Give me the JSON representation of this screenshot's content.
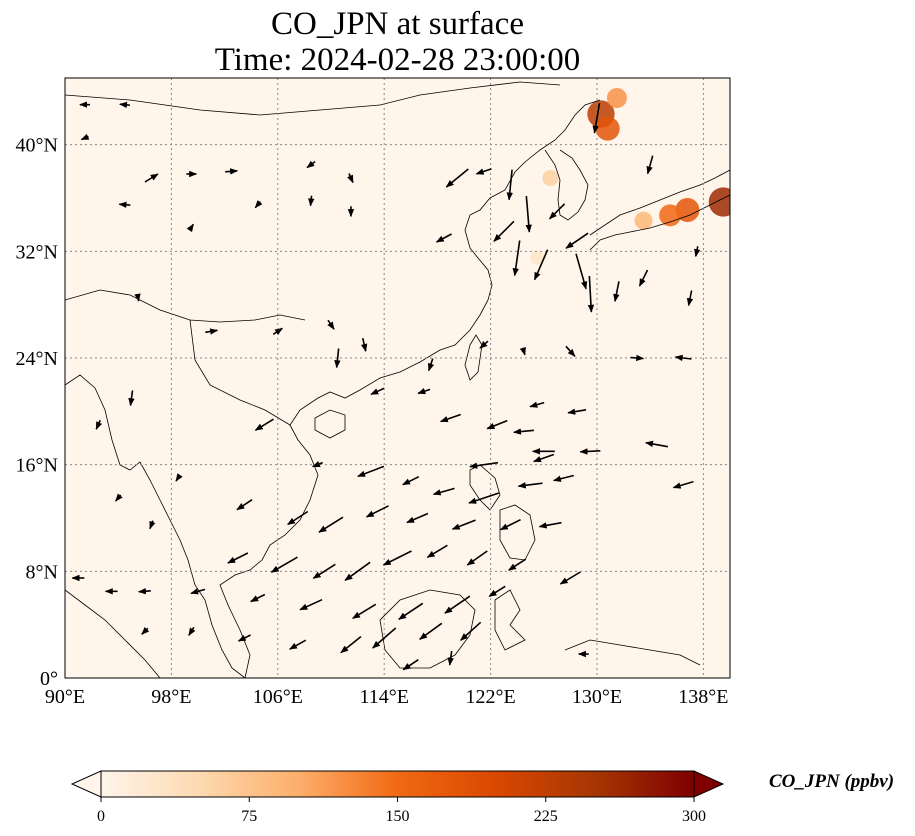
{
  "title": {
    "line1": "CO_JPN at surface",
    "line2": "Time: 2024-02-28 23:00:00"
  },
  "map": {
    "lon_range": [
      90,
      140
    ],
    "lat_range": [
      0,
      45
    ],
    "lon_ticks": [
      "90°E",
      "98°E",
      "106°E",
      "114°E",
      "122°E",
      "130°E",
      "138°E"
    ],
    "lat_ticks": [
      "0°",
      "8°N",
      "16°N",
      "24°N",
      "32°N",
      "40°N"
    ],
    "gridlines": "dotted",
    "background_color": "#fff5eb",
    "hotspot_color": "#c7300c"
  },
  "colorbar": {
    "label": "CO_JPN (ppbv)",
    "ticks": [
      "0",
      "75",
      "150",
      "225",
      "300"
    ],
    "range": [
      0,
      300
    ],
    "colormap": [
      "#fff5eb",
      "#fdd9b0",
      "#fdae6b",
      "#f16913",
      "#d94801",
      "#a63603",
      "#7f0000"
    ],
    "extend": "both"
  },
  "chart_data": {
    "type": "heatmap",
    "field": "CO_JPN",
    "units": "ppbv",
    "level": "surface",
    "time": "2024-02-28 23:00:00",
    "vmin": 0,
    "vmax": 300,
    "hotspots": [
      {
        "lon": 130.3,
        "lat": 42.3,
        "value": 230
      },
      {
        "lon": 130.8,
        "lat": 41.2,
        "value": 180
      },
      {
        "lon": 131.5,
        "lat": 43.5,
        "value": 120
      },
      {
        "lon": 139.5,
        "lat": 35.7,
        "value": 260
      },
      {
        "lon": 136.8,
        "lat": 35.1,
        "value": 180
      },
      {
        "lon": 135.5,
        "lat": 34.7,
        "value": 150
      },
      {
        "lon": 133.5,
        "lat": 34.3,
        "value": 90
      },
      {
        "lon": 126.5,
        "lat": 37.5,
        "value": 60
      },
      {
        "lon": 125.5,
        "lat": 31.5,
        "value": 30
      }
    ],
    "wind_vectors": [
      {
        "lon": 91.5,
        "lat": 43.0,
        "u": -1.0,
        "v": 0.0
      },
      {
        "lon": 94.5,
        "lat": 43.0,
        "u": -1.0,
        "v": 0.1
      },
      {
        "lon": 91.5,
        "lat": 40.5,
        "u": -0.7,
        "v": -0.3
      },
      {
        "lon": 96.5,
        "lat": 37.5,
        "u": 1.3,
        "v": 0.8
      },
      {
        "lon": 99.5,
        "lat": 37.8,
        "u": 1.0,
        "v": 0.0
      },
      {
        "lon": 102.5,
        "lat": 38.0,
        "u": 1.2,
        "v": 0.1
      },
      {
        "lon": 108.5,
        "lat": 38.5,
        "u": -0.8,
        "v": -0.6
      },
      {
        "lon": 111.5,
        "lat": 37.5,
        "u": 0.4,
        "v": -0.9
      },
      {
        "lon": 94.5,
        "lat": 35.5,
        "u": -1.1,
        "v": 0.1
      },
      {
        "lon": 99.5,
        "lat": 33.8,
        "u": 0.4,
        "v": 0.6
      },
      {
        "lon": 104.5,
        "lat": 35.5,
        "u": -0.5,
        "v": -0.6
      },
      {
        "lon": 108.5,
        "lat": 35.8,
        "u": -0.1,
        "v": -1.0
      },
      {
        "lon": 111.5,
        "lat": 35.0,
        "u": 0.0,
        "v": -1.0
      },
      {
        "lon": 119.5,
        "lat": 37.5,
        "u": -2.2,
        "v": -1.8
      },
      {
        "lon": 121.5,
        "lat": 38.0,
        "u": -1.5,
        "v": -0.5
      },
      {
        "lon": 123.5,
        "lat": 37.0,
        "u": -0.3,
        "v": -3.0
      },
      {
        "lon": 124.8,
        "lat": 34.8,
        "u": 0.3,
        "v": -3.6
      },
      {
        "lon": 123.0,
        "lat": 33.5,
        "u": -2.0,
        "v": -2.0
      },
      {
        "lon": 127.0,
        "lat": 35.0,
        "u": -1.5,
        "v": -1.5
      },
      {
        "lon": 118.5,
        "lat": 33.0,
        "u": -1.5,
        "v": -0.8
      },
      {
        "lon": 124.0,
        "lat": 31.5,
        "u": -0.5,
        "v": -3.5
      },
      {
        "lon": 125.8,
        "lat": 31.0,
        "u": -1.3,
        "v": -3.0
      },
      {
        "lon": 128.5,
        "lat": 32.8,
        "u": -2.2,
        "v": -1.5
      },
      {
        "lon": 128.8,
        "lat": 30.5,
        "u": 1.0,
        "v": -3.5
      },
      {
        "lon": 129.5,
        "lat": 28.8,
        "u": 0.2,
        "v": -3.6
      },
      {
        "lon": 131.5,
        "lat": 29.0,
        "u": -0.4,
        "v": -2.0
      },
      {
        "lon": 133.5,
        "lat": 30.0,
        "u": -0.8,
        "v": -1.6
      },
      {
        "lon": 137.0,
        "lat": 28.5,
        "u": -0.3,
        "v": -1.5
      },
      {
        "lon": 130.0,
        "lat": 42.0,
        "u": -0.5,
        "v": -3.0
      },
      {
        "lon": 134.0,
        "lat": 38.5,
        "u": -0.5,
        "v": -1.8
      },
      {
        "lon": 137.5,
        "lat": 32.0,
        "u": -0.2,
        "v": -1.0
      },
      {
        "lon": 95.5,
        "lat": 28.5,
        "u": 0.1,
        "v": -0.6
      },
      {
        "lon": 101.0,
        "lat": 26.0,
        "u": 1.2,
        "v": 0.2
      },
      {
        "lon": 106.0,
        "lat": 26.0,
        "u": 0.9,
        "v": 0.6
      },
      {
        "lon": 110.0,
        "lat": 26.5,
        "u": 0.6,
        "v": -0.9
      },
      {
        "lon": 112.5,
        "lat": 25.0,
        "u": 0.3,
        "v": -1.3
      },
      {
        "lon": 110.5,
        "lat": 24.0,
        "u": -0.2,
        "v": -1.9
      },
      {
        "lon": 117.5,
        "lat": 23.5,
        "u": -0.4,
        "v": -1.2
      },
      {
        "lon": 121.5,
        "lat": 25.0,
        "u": -0.8,
        "v": -0.7
      },
      {
        "lon": 124.5,
        "lat": 24.5,
        "u": 0.2,
        "v": -0.7
      },
      {
        "lon": 128.0,
        "lat": 24.5,
        "u": 0.9,
        "v": -1.0
      },
      {
        "lon": 133.0,
        "lat": 24.0,
        "u": 1.3,
        "v": -0.1
      },
      {
        "lon": 136.5,
        "lat": 24.0,
        "u": -1.6,
        "v": 0.2
      },
      {
        "lon": 105.0,
        "lat": 19.0,
        "u": -1.8,
        "v": -1.1
      },
      {
        "lon": 113.5,
        "lat": 21.5,
        "u": -1.3,
        "v": -0.6
      },
      {
        "lon": 117.0,
        "lat": 21.5,
        "u": -1.2,
        "v": -0.4
      },
      {
        "lon": 119.0,
        "lat": 19.5,
        "u": -2.0,
        "v": -0.7
      },
      {
        "lon": 122.5,
        "lat": 19.0,
        "u": -2.0,
        "v": -0.8
      },
      {
        "lon": 125.5,
        "lat": 20.5,
        "u": -1.4,
        "v": -0.4
      },
      {
        "lon": 128.5,
        "lat": 20.0,
        "u": -1.8,
        "v": -0.3
      },
      {
        "lon": 124.5,
        "lat": 18.5,
        "u": -2.0,
        "v": -0.2
      },
      {
        "lon": 126.0,
        "lat": 17.0,
        "u": -2.2,
        "v": 0.0
      },
      {
        "lon": 129.5,
        "lat": 17.0,
        "u": -2.0,
        "v": -0.1
      },
      {
        "lon": 134.5,
        "lat": 17.5,
        "u": -2.2,
        "v": 0.4
      },
      {
        "lon": 121.5,
        "lat": 16.0,
        "u": -2.8,
        "v": -0.4
      },
      {
        "lon": 126.0,
        "lat": 16.5,
        "u": -2.0,
        "v": -0.7
      },
      {
        "lon": 109.0,
        "lat": 16.0,
        "u": -1.0,
        "v": -0.4
      },
      {
        "lon": 113.0,
        "lat": 15.5,
        "u": -2.6,
        "v": -1.0
      },
      {
        "lon": 116.0,
        "lat": 14.8,
        "u": -1.6,
        "v": -0.8
      },
      {
        "lon": 118.5,
        "lat": 14.0,
        "u": -2.1,
        "v": -0.6
      },
      {
        "lon": 121.5,
        "lat": 13.5,
        "u": -3.0,
        "v": -1.0
      },
      {
        "lon": 125.0,
        "lat": 14.5,
        "u": -2.4,
        "v": -0.3
      },
      {
        "lon": 127.5,
        "lat": 15.0,
        "u": -2.0,
        "v": -0.5
      },
      {
        "lon": 136.5,
        "lat": 14.5,
        "u": -2.0,
        "v": -0.6
      },
      {
        "lon": 103.5,
        "lat": 13.0,
        "u": -1.5,
        "v": -1.0
      },
      {
        "lon": 107.5,
        "lat": 12.0,
        "u": -2.0,
        "v": -1.3
      },
      {
        "lon": 110.0,
        "lat": 11.5,
        "u": -2.4,
        "v": -1.5
      },
      {
        "lon": 113.5,
        "lat": 12.5,
        "u": -2.2,
        "v": -1.1
      },
      {
        "lon": 116.5,
        "lat": 12.0,
        "u": -2.1,
        "v": -0.9
      },
      {
        "lon": 120.0,
        "lat": 11.5,
        "u": -2.3,
        "v": -0.9
      },
      {
        "lon": 123.5,
        "lat": 11.5,
        "u": -2.0,
        "v": -1.0
      },
      {
        "lon": 126.5,
        "lat": 11.5,
        "u": -2.2,
        "v": -0.4
      },
      {
        "lon": 103.0,
        "lat": 9.0,
        "u": -2.0,
        "v": -1.0
      },
      {
        "lon": 106.5,
        "lat": 8.5,
        "u": -2.6,
        "v": -1.5
      },
      {
        "lon": 109.5,
        "lat": 8.0,
        "u": -2.2,
        "v": -1.4
      },
      {
        "lon": 112.0,
        "lat": 8.0,
        "u": -2.5,
        "v": -1.8
      },
      {
        "lon": 115.0,
        "lat": 9.0,
        "u": -2.8,
        "v": -1.4
      },
      {
        "lon": 118.0,
        "lat": 9.5,
        "u": -2.0,
        "v": -1.2
      },
      {
        "lon": 121.0,
        "lat": 9.0,
        "u": -2.0,
        "v": -1.4
      },
      {
        "lon": 124.0,
        "lat": 8.5,
        "u": -1.7,
        "v": -1.1
      },
      {
        "lon": 128.0,
        "lat": 7.5,
        "u": -2.0,
        "v": -1.2
      },
      {
        "lon": 91.0,
        "lat": 7.5,
        "u": -1.2,
        "v": 0.0
      },
      {
        "lon": 93.5,
        "lat": 6.5,
        "u": -1.2,
        "v": 0.0
      },
      {
        "lon": 96.0,
        "lat": 6.5,
        "u": -1.2,
        "v": -0.1
      },
      {
        "lon": 100.0,
        "lat": 6.5,
        "u": -1.4,
        "v": -0.4
      },
      {
        "lon": 104.5,
        "lat": 6.0,
        "u": -1.4,
        "v": -0.7
      },
      {
        "lon": 108.5,
        "lat": 5.5,
        "u": -2.2,
        "v": -1.0
      },
      {
        "lon": 112.5,
        "lat": 5.0,
        "u": -2.3,
        "v": -1.4
      },
      {
        "lon": 116.0,
        "lat": 5.0,
        "u": -2.4,
        "v": -1.6
      },
      {
        "lon": 119.5,
        "lat": 5.5,
        "u": -2.5,
        "v": -1.7
      },
      {
        "lon": 122.5,
        "lat": 6.5,
        "u": -1.6,
        "v": -1.0
      },
      {
        "lon": 114.0,
        "lat": 3.0,
        "u": -2.3,
        "v": -2.0
      },
      {
        "lon": 117.5,
        "lat": 3.5,
        "u": -2.2,
        "v": -1.6
      },
      {
        "lon": 120.5,
        "lat": 3.5,
        "u": -2.0,
        "v": -1.8
      },
      {
        "lon": 111.5,
        "lat": 2.5,
        "u": -2.0,
        "v": -1.6
      },
      {
        "lon": 107.5,
        "lat": 2.5,
        "u": -1.6,
        "v": -0.9
      },
      {
        "lon": 103.5,
        "lat": 3.0,
        "u": -1.2,
        "v": -0.6
      },
      {
        "lon": 99.5,
        "lat": 3.5,
        "u": -0.5,
        "v": -0.8
      },
      {
        "lon": 96.0,
        "lat": 3.5,
        "u": -0.6,
        "v": -0.6
      },
      {
        "lon": 116.0,
        "lat": 1.0,
        "u": -1.5,
        "v": -1.0
      },
      {
        "lon": 119.0,
        "lat": 1.5,
        "u": -0.2,
        "v": -1.4
      },
      {
        "lon": 129.0,
        "lat": 1.8,
        "u": -1.0,
        "v": 0.0
      },
      {
        "lon": 95.0,
        "lat": 21.0,
        "u": -0.2,
        "v": -1.5
      },
      {
        "lon": 92.5,
        "lat": 19.0,
        "u": -0.4,
        "v": -0.9
      },
      {
        "lon": 98.5,
        "lat": 15.0,
        "u": -0.4,
        "v": -0.6
      },
      {
        "lon": 96.5,
        "lat": 11.5,
        "u": -0.3,
        "v": -0.8
      },
      {
        "lon": 94.0,
        "lat": 13.5,
        "u": -0.5,
        "v": -0.6
      }
    ]
  }
}
